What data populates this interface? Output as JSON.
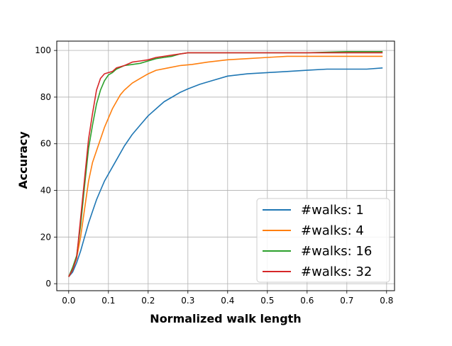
{
  "chart_data": {
    "type": "line",
    "xlabel": "Normalized walk length",
    "ylabel": "Accuracy",
    "xlim": [
      -0.03,
      0.82
    ],
    "ylim": [
      -3,
      104
    ],
    "xticks": [
      0.0,
      0.1,
      0.2,
      0.3,
      0.4,
      0.5,
      0.6,
      0.7,
      0.8
    ],
    "xtick_labels": [
      "0.0",
      "0.1",
      "0.2",
      "0.3",
      "0.4",
      "0.5",
      "0.6",
      "0.7",
      "0.8"
    ],
    "yticks": [
      0,
      20,
      40,
      60,
      80,
      100
    ],
    "ytick_labels": [
      "0",
      "20",
      "40",
      "60",
      "80",
      "100"
    ],
    "grid": true,
    "legend_position": "bottom-right",
    "series": [
      {
        "name": "#walks: 1",
        "color": "#1f77b4",
        "x": [
          0.0,
          0.01,
          0.02,
          0.03,
          0.04,
          0.05,
          0.06,
          0.07,
          0.08,
          0.09,
          0.1,
          0.12,
          0.14,
          0.16,
          0.18,
          0.2,
          0.22,
          0.24,
          0.26,
          0.28,
          0.3,
          0.33,
          0.36,
          0.4,
          0.45,
          0.5,
          0.55,
          0.6,
          0.65,
          0.7,
          0.75,
          0.79
        ],
        "y": [
          3,
          5,
          9,
          14,
          20,
          26,
          31,
          36,
          40,
          44,
          47,
          53,
          59,
          64,
          68,
          72,
          75,
          78,
          80,
          82,
          83.5,
          85.5,
          87,
          89,
          90,
          90.5,
          91,
          91.5,
          92,
          92,
          92,
          92.5
        ]
      },
      {
        "name": "#walks: 4",
        "color": "#ff7f0e",
        "x": [
          0.0,
          0.01,
          0.02,
          0.03,
          0.04,
          0.05,
          0.06,
          0.07,
          0.08,
          0.09,
          0.1,
          0.11,
          0.12,
          0.13,
          0.14,
          0.16,
          0.18,
          0.2,
          0.22,
          0.25,
          0.28,
          0.31,
          0.35,
          0.4,
          0.45,
          0.5,
          0.55,
          0.6,
          0.65,
          0.7,
          0.75,
          0.79
        ],
        "y": [
          3,
          6,
          11,
          20,
          32,
          44,
          52,
          57,
          62,
          67,
          71,
          75,
          78,
          81,
          83,
          86,
          88,
          90,
          91.5,
          92.5,
          93.5,
          94,
          95,
          96,
          96.5,
          97,
          97.5,
          97.5,
          97.5,
          97.5,
          97.5,
          97.5
        ]
      },
      {
        "name": "#walks: 16",
        "color": "#2ca02c",
        "x": [
          0.0,
          0.01,
          0.02,
          0.03,
          0.04,
          0.05,
          0.06,
          0.07,
          0.08,
          0.09,
          0.1,
          0.11,
          0.12,
          0.14,
          0.16,
          0.18,
          0.2,
          0.22,
          0.24,
          0.26,
          0.28,
          0.3,
          0.35,
          0.4,
          0.5,
          0.6,
          0.7,
          0.79
        ],
        "y": [
          3,
          7,
          12,
          25,
          42,
          58,
          68,
          77,
          83,
          87,
          89.5,
          90.5,
          92,
          93.5,
          94,
          94.5,
          95.5,
          96.5,
          97,
          97.5,
          98.5,
          99,
          99,
          99,
          99,
          99,
          99.5,
          99.5
        ]
      },
      {
        "name": "#walks: 32",
        "color": "#d62728",
        "x": [
          0.0,
          0.01,
          0.02,
          0.03,
          0.04,
          0.05,
          0.06,
          0.07,
          0.08,
          0.09,
          0.1,
          0.11,
          0.12,
          0.14,
          0.16,
          0.18,
          0.2,
          0.22,
          0.24,
          0.26,
          0.28,
          0.3,
          0.35,
          0.4,
          0.5,
          0.6,
          0.7,
          0.79
        ],
        "y": [
          3,
          6,
          11,
          28,
          45,
          62,
          73,
          83,
          88,
          90,
          90.5,
          91,
          92.5,
          93.5,
          95,
          95.5,
          96,
          97,
          97.5,
          98,
          98.5,
          99,
          99,
          99,
          99,
          99,
          99,
          99
        ]
      }
    ]
  }
}
